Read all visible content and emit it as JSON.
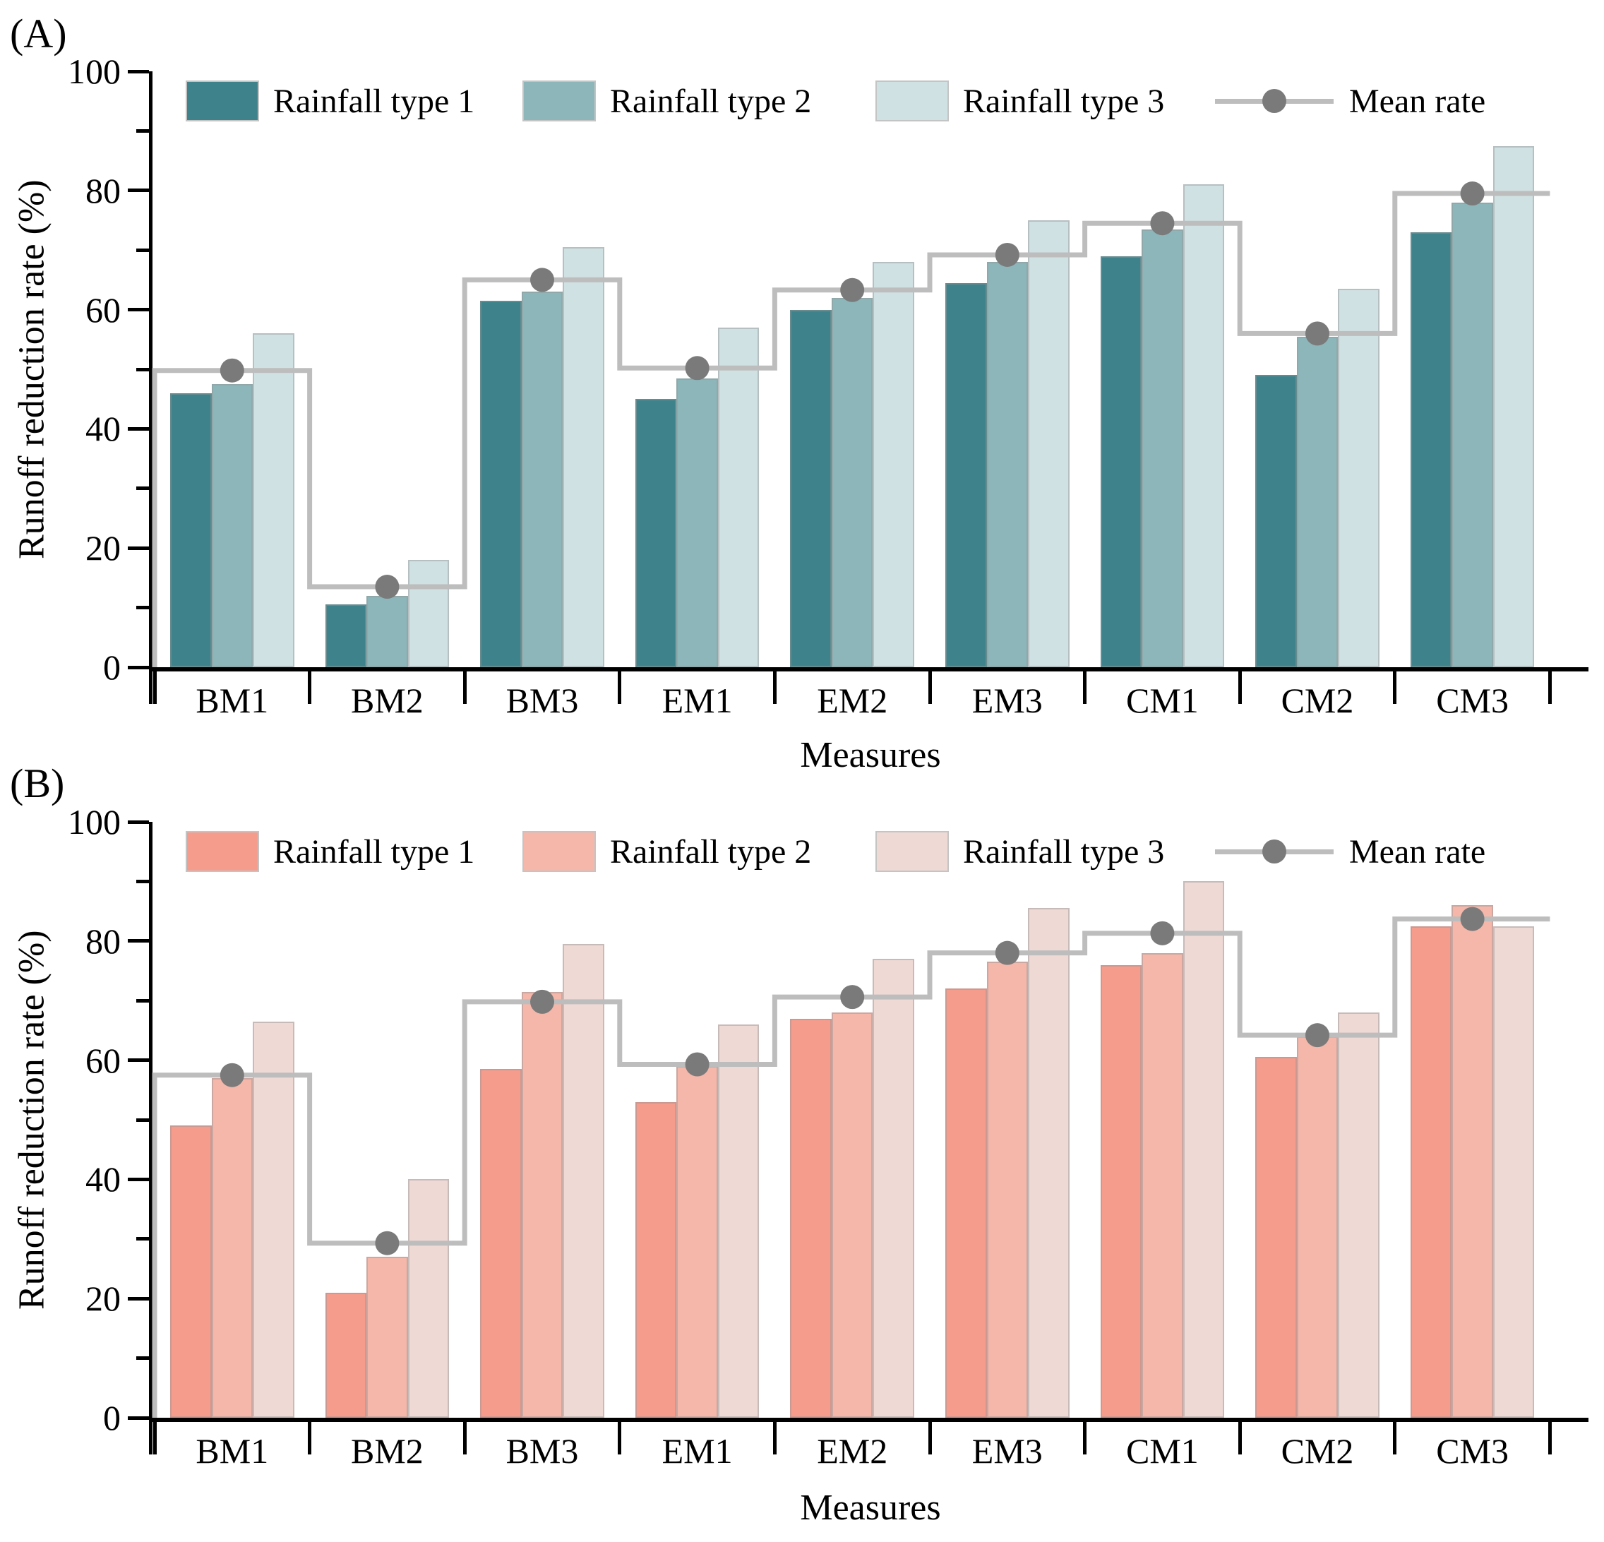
{
  "figure": {
    "panel_a_label": "(A)",
    "panel_b_label": "(B)"
  },
  "chart_data": [
    {
      "type": "bar",
      "panel_label": "(A)",
      "title": "",
      "xlabel": "Measures",
      "ylabel": "Runoff reduction rate (%)",
      "ylim": [
        0,
        100
      ],
      "yticks_major": [
        0,
        20,
        40,
        60,
        80,
        100
      ],
      "yticks_minor": [
        10,
        30,
        50,
        70,
        90
      ],
      "grid": false,
      "legend_position": "top-inside",
      "categories": [
        "BM1",
        "BM2",
        "BM3",
        "EM1",
        "EM2",
        "EM3",
        "CM1",
        "CM2",
        "CM3"
      ],
      "series": [
        {
          "name": "Rainfall type 1",
          "color": "#3E838B",
          "values": [
            46.0,
            10.5,
            61.5,
            45.0,
            60.0,
            64.5,
            69.0,
            49.0,
            73.0
          ]
        },
        {
          "name": "Rainfall type 2",
          "color": "#8CB6BA",
          "values": [
            47.5,
            12.0,
            63.0,
            48.5,
            62.0,
            68.0,
            73.5,
            55.5,
            78.0
          ]
        },
        {
          "name": "Rainfall type 3",
          "color": "#D0E1E3",
          "values": [
            56.0,
            18.0,
            70.5,
            57.0,
            68.0,
            75.0,
            81.0,
            63.5,
            87.5
          ]
        }
      ],
      "mean_line": {
        "name": "Mean rate",
        "line_color": "#BDBDBD",
        "dot_color": "#7A7A7A",
        "values": [
          49.8,
          13.5,
          65.0,
          50.2,
          63.3,
          69.2,
          74.5,
          56.0,
          79.5
        ]
      }
    },
    {
      "type": "bar",
      "panel_label": "(B)",
      "title": "",
      "xlabel": "Measures",
      "ylabel": "Runoff reduction rate (%)",
      "ylim": [
        0,
        100
      ],
      "yticks_major": [
        0,
        20,
        40,
        60,
        80,
        100
      ],
      "yticks_minor": [
        10,
        30,
        50,
        70,
        90
      ],
      "grid": false,
      "legend_position": "top-inside",
      "categories": [
        "BM1",
        "BM2",
        "BM3",
        "EM1",
        "EM2",
        "EM3",
        "CM1",
        "CM2",
        "CM3"
      ],
      "series": [
        {
          "name": "Rainfall type 1",
          "color": "#F69C8C",
          "values": [
            49.0,
            21.0,
            58.5,
            53.0,
            67.0,
            72.0,
            76.0,
            60.5,
            82.5
          ]
        },
        {
          "name": "Rainfall type 2",
          "color": "#F4B7AA",
          "values": [
            57.0,
            27.0,
            71.5,
            59.0,
            68.0,
            76.5,
            78.0,
            64.0,
            86.0
          ]
        },
        {
          "name": "Rainfall type 3",
          "color": "#EFD9D5",
          "values": [
            66.5,
            40.0,
            79.5,
            66.0,
            77.0,
            85.5,
            90.0,
            68.0,
            82.5
          ]
        }
      ],
      "mean_line": {
        "name": "Mean rate",
        "line_color": "#BDBDBD",
        "dot_color": "#7A7A7A",
        "values": [
          57.5,
          29.3,
          69.8,
          59.3,
          70.6,
          78.0,
          81.3,
          64.2,
          83.7
        ]
      }
    }
  ]
}
